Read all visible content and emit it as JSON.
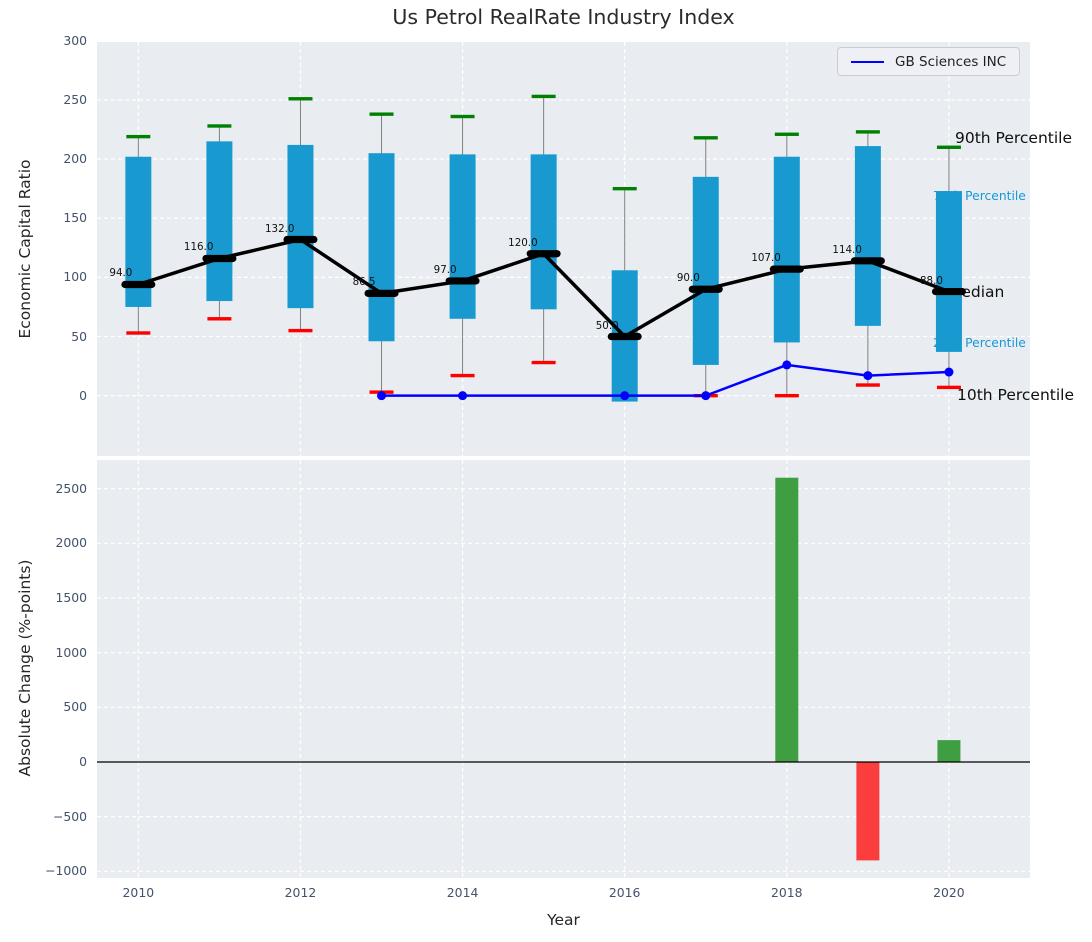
{
  "title": "Us Petrol RealRate Industry Index",
  "legend": {
    "label": "GB Sciences INC",
    "line_color": "#0000ff"
  },
  "annotations": [
    {
      "text": "90th Percentile",
      "style": "black"
    },
    {
      "text": "75th Percentile",
      "style": "teal"
    },
    {
      "text": "Median",
      "style": "black"
    },
    {
      "text": "25th Percentile",
      "style": "teal"
    },
    {
      "text": "10th Percentile",
      "style": "black"
    }
  ],
  "colors": {
    "box": "#189ad0",
    "p90_cap": "#008000",
    "p10_cap": "#ff0000",
    "median": "#000000",
    "company_line": "#0000ff",
    "bar_positive": "#3f9e42",
    "bar_negative": "#fb3d3d",
    "panel_bg": "#e9edf1",
    "gridline": "#ffffff",
    "whisker": "#808080",
    "tick_text": "#42526b",
    "annotation_teal": "#1599d6"
  },
  "chart_data": [
    {
      "type": "box",
      "title": "Us Petrol RealRate Industry Index",
      "ylabel": "Economic Capital Ratio",
      "x": [
        2010,
        2011,
        2012,
        2013,
        2014,
        2015,
        2016,
        2017,
        2018,
        2019,
        2020
      ],
      "xlim": [
        2009.49,
        2021.0
      ],
      "ylim": [
        -51,
        299
      ],
      "yticks": [
        0,
        50,
        100,
        150,
        200,
        250,
        300
      ],
      "xticks": [
        2010,
        2012,
        2014,
        2016,
        2018,
        2020
      ],
      "grid": true,
      "legend_position": "upper right",
      "series": [
        {
          "name": "90th Percentile",
          "values": [
            219,
            228,
            251,
            238,
            236,
            253,
            175,
            218,
            221,
            223,
            210
          ]
        },
        {
          "name": "75th Percentile",
          "values": [
            202,
            215,
            212,
            205,
            204,
            204,
            106,
            185,
            202,
            211,
            173
          ]
        },
        {
          "name": "Median",
          "values": [
            94.0,
            116.0,
            132.0,
            86.5,
            97.0,
            120.0,
            50.0,
            90.0,
            107.0,
            114.0,
            88.0
          ]
        },
        {
          "name": "25th Percentile",
          "values": [
            75,
            80,
            74,
            46,
            65,
            73,
            -5,
            26,
            45,
            59,
            37
          ]
        },
        {
          "name": "10th Percentile",
          "values": [
            53,
            65,
            55,
            3,
            17,
            28,
            null,
            0,
            0,
            9,
            7
          ]
        }
      ],
      "median_labels": [
        "94.0",
        "116.0",
        "132.0",
        "86.5",
        "97.0",
        "120.0",
        "50.0",
        "90.0",
        "107.0",
        "114.0",
        "88.0"
      ],
      "company": {
        "name": "GB Sciences INC",
        "x": [
          2013,
          2014,
          2015,
          2016,
          2017,
          2018,
          2019,
          2020
        ],
        "values": [
          0,
          0,
          0,
          0,
          0,
          26,
          17,
          20
        ],
        "marker_x": [
          2013,
          2014,
          2016,
          2017,
          2018,
          2019,
          2020
        ]
      }
    },
    {
      "type": "bar",
      "ylabel": "Absolute Change (%-points)",
      "xlabel": "Year",
      "x": [
        2018,
        2019,
        2020
      ],
      "values": [
        2600,
        -900,
        200
      ],
      "bar_colors": [
        "positive",
        "negative",
        "positive"
      ],
      "xlim": [
        2009.49,
        2021.0
      ],
      "ylim": [
        -1061,
        2762
      ],
      "yticks": [
        -1000,
        -500,
        0,
        500,
        1000,
        1500,
        2000,
        2500
      ],
      "xticks": [
        2010,
        2012,
        2014,
        2016,
        2018,
        2020
      ],
      "grid": true,
      "zero_line": true
    }
  ]
}
